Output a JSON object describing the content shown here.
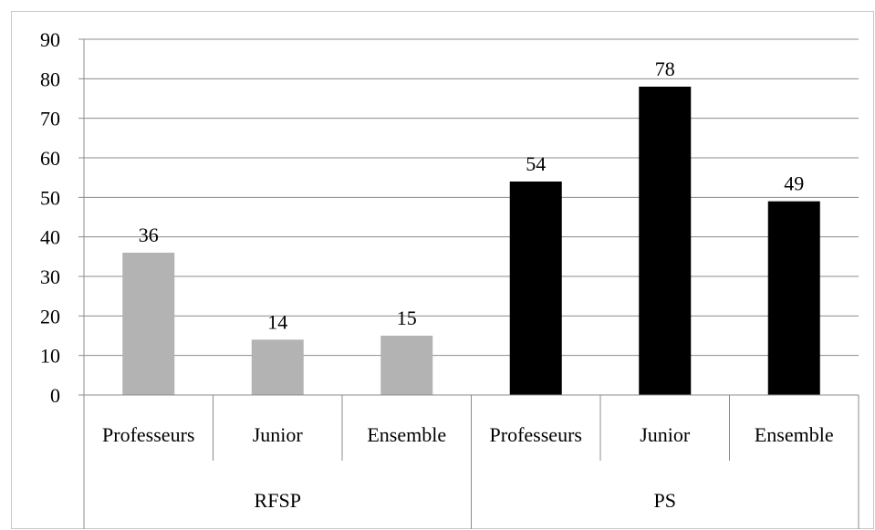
{
  "chart_data": {
    "type": "bar",
    "title": "",
    "xlabel": "",
    "ylabel": "",
    "ylim": [
      0,
      90
    ],
    "yticks": [
      0,
      10,
      20,
      30,
      40,
      50,
      60,
      70,
      80,
      90
    ],
    "grid": true,
    "groups": [
      {
        "label": "RFSP",
        "color": "#b3b3b3",
        "categories": [
          "Professeurs",
          "Junior",
          "Ensemble"
        ],
        "values": [
          36,
          14,
          15
        ]
      },
      {
        "label": "PS",
        "color": "#000000",
        "categories": [
          "Professeurs",
          "Junior",
          "Ensemble"
        ],
        "values": [
          54,
          78,
          49
        ]
      }
    ]
  }
}
